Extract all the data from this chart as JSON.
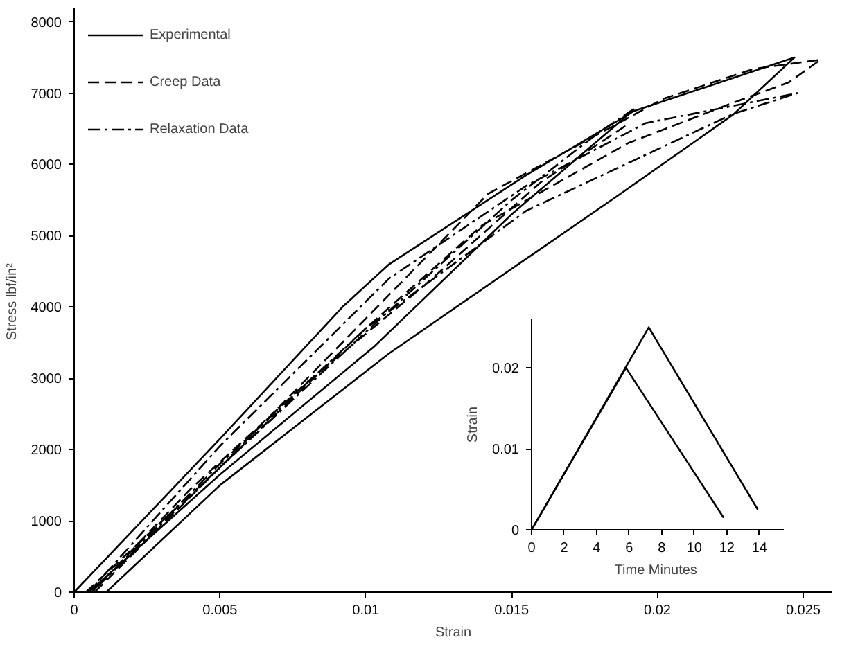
{
  "chart_data": [
    {
      "type": "line",
      "xlabel": "Strain",
      "ylabel": "Stress  lbf/in²",
      "xlim": [
        0,
        0.026
      ],
      "ylim": [
        0,
        8200
      ],
      "xticks": [
        0,
        0.005,
        0.01,
        0.015,
        0.02,
        0.025
      ],
      "yticks": [
        0,
        1000,
        2000,
        3000,
        4000,
        5000,
        6000,
        7000,
        8000
      ],
      "grid": false,
      "legend": "top left",
      "series": [
        {
          "name": "Experimental",
          "color": "#000000",
          "line_style": "solid",
          "x": [
            0,
            0.005,
            0.0092,
            0.0108,
            0.0155,
            0.0192,
            0.0247,
            0.0226,
            0.0186,
            0.0108,
            0.005,
            0.0011
          ],
          "values": [
            0,
            2150,
            4000,
            4600,
            5850,
            6750,
            7500,
            6700,
            5550,
            3350,
            1500,
            0
          ]
        },
        {
          "color": "#000000",
          "line_style": "solid",
          "x": [
            0.0192,
            0.015,
            0.0103,
            0.005,
            0.0005
          ],
          "values": [
            6770,
            5300,
            3450,
            1650,
            0
          ]
        },
        {
          "name": "Creep Data",
          "color": "#000000",
          "line_style": "dashed",
          "x": [
            0.0004,
            0.005,
            0.0142,
            0.0202,
            0.0233,
            0.0256,
            0.0245,
            0.0225,
            0.019,
            0.014,
            0.01,
            0.005,
            0.0007
          ],
          "values": [
            0,
            1750,
            5590,
            6920,
            7340,
            7470,
            7150,
            6850,
            6300,
            5150,
            3700,
            1750,
            0
          ]
        },
        {
          "color": "#000000",
          "line_style": "dashed",
          "x": [
            0.0189,
            0.016,
            0.012,
            0.008,
            0.004,
            0.0006
          ],
          "values": [
            6540,
            5750,
            4300,
            2950,
            1450,
            0
          ]
        },
        {
          "name": "Relaxation Data",
          "color": "#000000",
          "line_style": "dashdot",
          "x": [
            0.0005,
            0.005,
            0.0108,
            0.0155,
            0.0196,
            0.0248,
            0.0226,
            0.0155,
            0.01,
            0.005,
            0.0006
          ],
          "values": [
            0,
            2050,
            4400,
            5700,
            6580,
            7000,
            6710,
            5350,
            3700,
            1800,
            0
          ]
        },
        {
          "color": "#000000",
          "line_style": "dashdot",
          "x": [
            0.0192,
            0.018,
            0.015,
            0.01,
            0.005,
            0.0006
          ],
          "values": [
            6780,
            6450,
            5500,
            3650,
            1750,
            0
          ]
        }
      ]
    },
    {
      "type": "line",
      "xlabel": "Time  Minutes",
      "ylabel": "Strain",
      "xlim": [
        0,
        15.5
      ],
      "ylim": [
        0,
        0.026
      ],
      "xticks": [
        0,
        2,
        4,
        6,
        8,
        10,
        12,
        14
      ],
      "yticks": [
        0,
        0.01,
        0.02
      ],
      "grid": false,
      "series": [
        {
          "color": "#000000",
          "line_style": "solid",
          "x": [
            0,
            5.8,
            11.8
          ],
          "values": [
            0,
            0.02,
            0.0015
          ]
        },
        {
          "color": "#000000",
          "line_style": "solid",
          "x": [
            0,
            7.2,
            13.9
          ],
          "values": [
            0,
            0.025,
            0.0025
          ]
        }
      ]
    }
  ]
}
